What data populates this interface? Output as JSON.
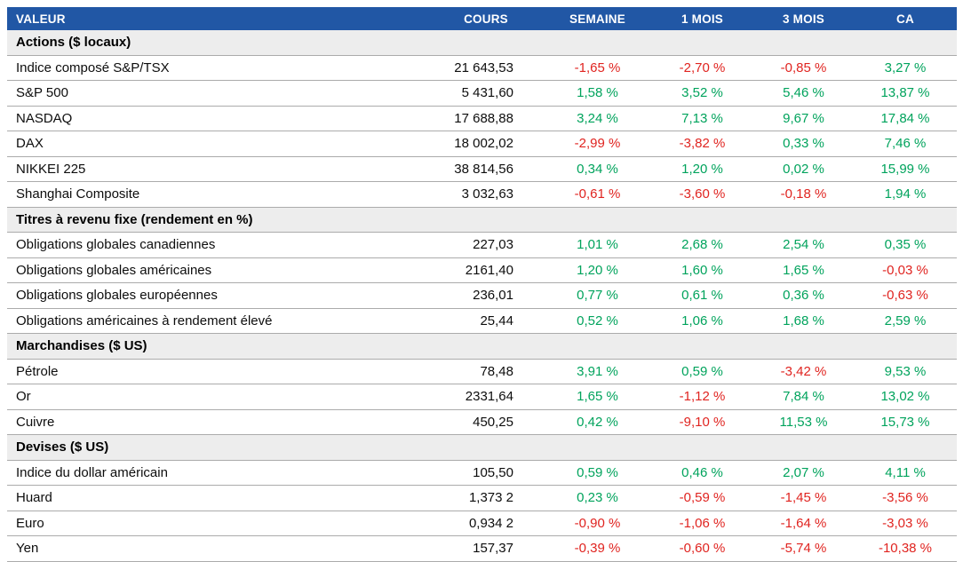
{
  "table": {
    "columns": [
      "VALEUR",
      "COURS",
      "SEMAINE",
      "1 MOIS",
      "3 MOIS",
      "CA"
    ],
    "colors": {
      "header_bg": "#2157A5",
      "section_bg": "#EDEDED",
      "positive": "#00A35C",
      "negative": "#E02420",
      "row_line": "#ABABAB"
    },
    "sections": [
      {
        "title": "Actions ($ locaux)",
        "rows": [
          {
            "name": "Indice composé S&P/TSX",
            "cours": "21 643,53",
            "semaine": "-1,65 %",
            "mois1": "-2,70 %",
            "mois3": "-0,85 %",
            "ca": "3,27 %"
          },
          {
            "name": "S&P 500",
            "cours": "5 431,60",
            "semaine": "1,58 %",
            "mois1": "3,52 %",
            "mois3": "5,46 %",
            "ca": "13,87 %"
          },
          {
            "name": "NASDAQ",
            "cours": "17 688,88",
            "semaine": "3,24 %",
            "mois1": "7,13 %",
            "mois3": "9,67 %",
            "ca": "17,84 %"
          },
          {
            "name": "DAX",
            "cours": "18 002,02",
            "semaine": "-2,99 %",
            "mois1": "-3,82 %",
            "mois3": "0,33 %",
            "ca": "7,46 %"
          },
          {
            "name": "NIKKEI 225",
            "cours": "38 814,56",
            "semaine": "0,34 %",
            "mois1": "1,20 %",
            "mois3": "0,02 %",
            "ca": "15,99 %"
          },
          {
            "name": "Shanghai Composite",
            "cours": "3 032,63",
            "semaine": "-0,61 %",
            "mois1": "-3,60 %",
            "mois3": "-0,18 %",
            "ca": "1,94 %"
          }
        ]
      },
      {
        "title": "Titres à revenu fixe (rendement en %)",
        "rows": [
          {
            "name": "Obligations globales canadiennes",
            "cours": "227,03",
            "semaine": "1,01 %",
            "mois1": "2,68 %",
            "mois3": "2,54 %",
            "ca": "0,35 %"
          },
          {
            "name": "Obligations globales américaines",
            "cours": "2161,40",
            "semaine": "1,20 %",
            "mois1": "1,60 %",
            "mois3": "1,65 %",
            "ca": "-0,03 %"
          },
          {
            "name": "Obligations globales européennes",
            "cours": "236,01",
            "semaine": "0,77 %",
            "mois1": "0,61 %",
            "mois3": "0,36 %",
            "ca": "-0,63 %"
          },
          {
            "name": "Obligations américaines à rendement élevé",
            "cours": "25,44",
            "semaine": "0,52 %",
            "mois1": "1,06 %",
            "mois3": "1,68 %",
            "ca": "2,59 %"
          }
        ]
      },
      {
        "title": "Marchandises ($ US)",
        "rows": [
          {
            "name": "Pétrole",
            "cours": "78,48",
            "semaine": "3,91 %",
            "mois1": "0,59 %",
            "mois3": "-3,42 %",
            "ca": "9,53 %"
          },
          {
            "name": "Or",
            "cours": "2331,64",
            "semaine": "1,65 %",
            "mois1": "-1,12 %",
            "mois3": "7,84 %",
            "ca": "13,02 %"
          },
          {
            "name": "Cuivre",
            "cours": "450,25",
            "semaine": "0,42 %",
            "mois1": "-9,10 %",
            "mois3": "11,53 %",
            "ca": "15,73 %"
          }
        ]
      },
      {
        "title": "Devises ($ US)",
        "rows": [
          {
            "name": "Indice du dollar américain",
            "cours": "105,50",
            "semaine": "0,59 %",
            "mois1": "0,46 %",
            "mois3": "2,07 %",
            "ca": "4,11 %"
          },
          {
            "name": "Huard",
            "cours": "1,373 2",
            "semaine": "0,23 %",
            "mois1": "-0,59 %",
            "mois3": "-1,45 %",
            "ca": "-3,56 %"
          },
          {
            "name": "Euro",
            "cours": "0,934 2",
            "semaine": "-0,90 %",
            "mois1": "-1,06 %",
            "mois3": "-1,64 %",
            "ca": "-3,03 %"
          },
          {
            "name": "Yen",
            "cours": "157,37",
            "semaine": "-0,39 %",
            "mois1": "-0,60 %",
            "mois3": "-5,74 %",
            "ca": "-10,38 %"
          }
        ]
      }
    ]
  }
}
